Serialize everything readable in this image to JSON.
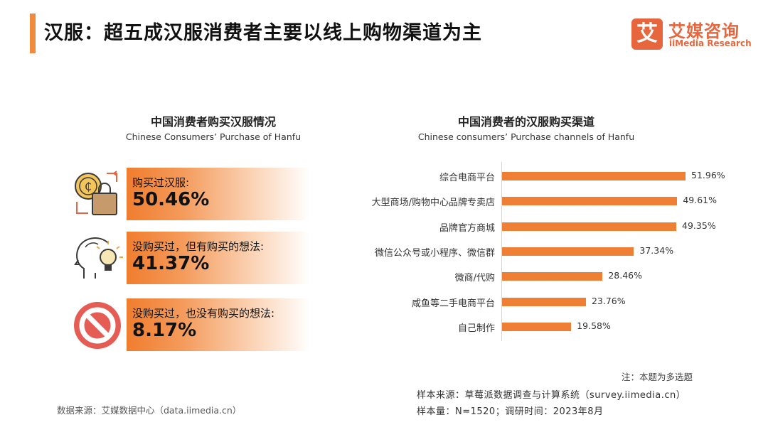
{
  "header": {
    "title": "汉服：超五成汉服消费者主要以线上购物渠道为主",
    "logo_mark": "艾",
    "logo_cn": "艾媒咨询",
    "logo_en": "iiMedia Research",
    "accent_color": "#f08a3c"
  },
  "left_panel": {
    "title_cn": "中国消费者购买汉服情况",
    "title_en": "Chinese Consumers’ Purchase of Hanfu",
    "stats": [
      {
        "label": "购买过汉服:",
        "value": "50.46%",
        "icon": "coin-shopping-bag-icon"
      },
      {
        "label": "没购买过，但有购买的想法:",
        "value": "41.37%",
        "icon": "head-lightbulb-icon"
      },
      {
        "label": "没购买过，也没有购买的想法:",
        "value": "8.17%",
        "icon": "prohibited-icon"
      }
    ]
  },
  "right_panel": {
    "title_cn": "中国消费者的汉服购买渠道",
    "title_en": "Chinese consumers’ Purchase channels of Hanfu"
  },
  "chart_data": {
    "type": "bar",
    "orientation": "horizontal",
    "title": "中国消费者的汉服购买渠道",
    "subtitle": "Chinese consumers’ Purchase channels of Hanfu",
    "categories": [
      "综合电商平台",
      "大型商场/购物中心品牌专卖店",
      "品牌官方商城",
      "微信公众号或小程序、微信群",
      "微商/代购",
      "咸鱼等二手电商平台",
      "自己制作"
    ],
    "values": [
      51.96,
      49.61,
      49.35,
      37.34,
      28.46,
      23.76,
      19.58
    ],
    "value_labels": [
      "51.96%",
      "49.61%",
      "49.35%",
      "37.34%",
      "28.46%",
      "23.76%",
      "19.58%"
    ],
    "unit": "%",
    "xlim": [
      0,
      51.96
    ],
    "bar_color": "#ef7f34",
    "grid": false,
    "legend": "none"
  },
  "footer": {
    "note": "注：本题为多选题",
    "sample_source": "样本来源：草莓派数据调查与计算系统（survey.iimedia.cn）",
    "sample_size": "样本量：N=1520；调研时间：2023年8月",
    "data_source": "数据来源：艾媒数据中心（data.iimedia.cn）"
  }
}
